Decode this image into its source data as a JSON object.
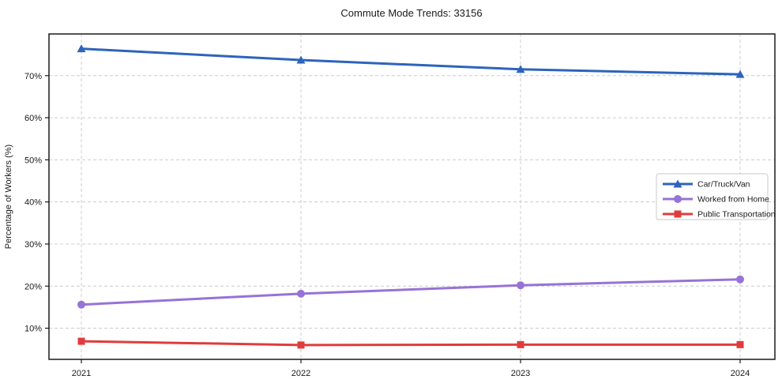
{
  "chart_data": {
    "type": "line",
    "title": "Commute Mode Trends: 33156",
    "xlabel": "",
    "ylabel": "Percentage of Workers (%)",
    "x": [
      2021,
      2022,
      2023,
      2024
    ],
    "x_tick_labels": [
      "2021",
      "2022",
      "2023",
      "2024"
    ],
    "y_ticks": [
      10,
      20,
      30,
      40,
      50,
      60,
      70
    ],
    "y_tick_labels": [
      "10%",
      "20%",
      "30%",
      "40%",
      "50%",
      "60%",
      "70%"
    ],
    "ylim": [
      2.6,
      79.9
    ],
    "grid": "dashed-both-axes",
    "legend_position": "middle-right",
    "legend_border": true,
    "series": [
      {
        "name": "Car/Truck/Van",
        "marker": "triangle",
        "color": "#2d64bc",
        "values": [
          76.4,
          73.7,
          71.5,
          70.3
        ]
      },
      {
        "name": "Worked from Home",
        "marker": "circle",
        "color": "#9673d6",
        "values": [
          15.6,
          18.2,
          20.2,
          21.6
        ]
      },
      {
        "name": "Public Transportation",
        "marker": "square",
        "color": "#e03c3c",
        "values": [
          6.9,
          6.0,
          6.1,
          6.1
        ]
      }
    ]
  },
  "colors": {
    "background": "#ffffff",
    "grid": "#cccccc",
    "frame": "#1a1a1a",
    "text": "#1a1a1a",
    "legend_border": "#c9c9c9"
  }
}
